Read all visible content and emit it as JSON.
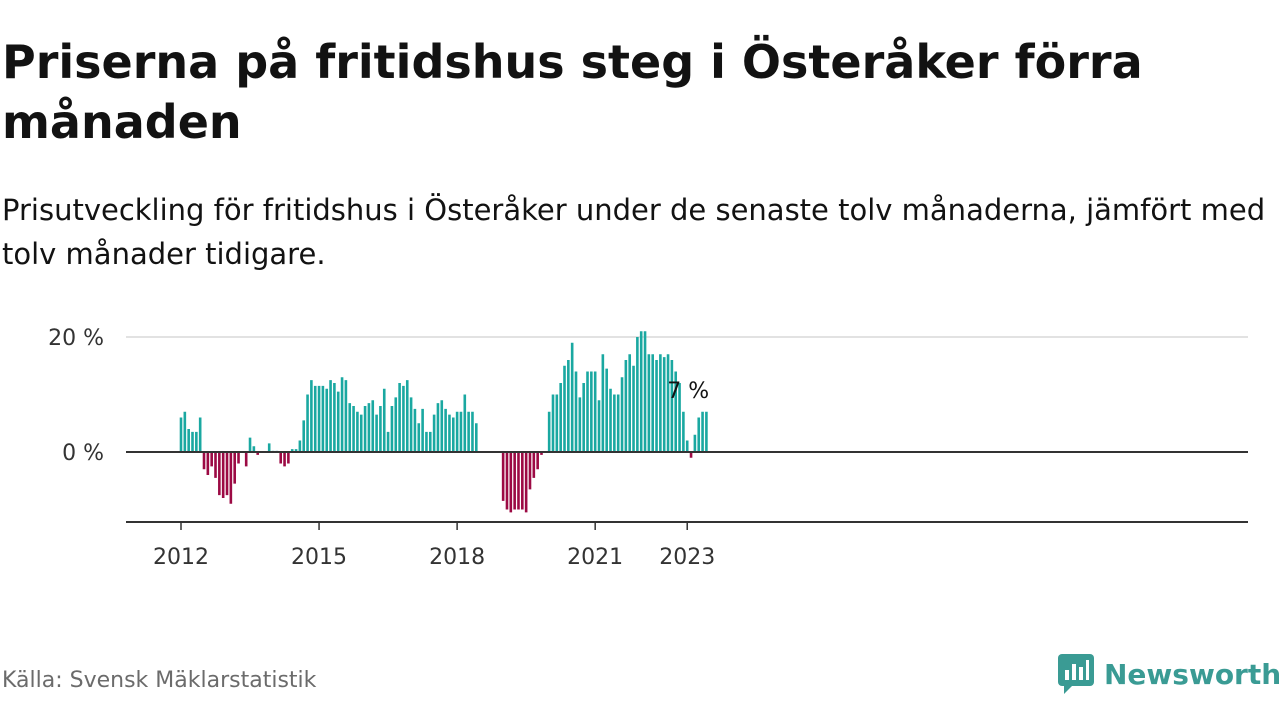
{
  "header": {
    "title": "Priserna på fritidshus steg i Österåker förra månaden",
    "subtitle": "Prisutveckling för fritidshus i Österåker under de senaste tolv månaderna, jämfört med tolv månader tidigare."
  },
  "footer": {
    "source": "Källa: Svensk Mäklarstatistik",
    "brand": "Newsworthy",
    "brand_icon": "newsworthy-logo-icon"
  },
  "colors": {
    "positive": "#1aa8a1",
    "negative": "#9c0a44",
    "brand": "#3a9b94",
    "axis": "#333333",
    "grid": "#d9d9d9"
  },
  "chart_data": {
    "type": "bar",
    "x_start": "2012-01",
    "x_end": "2023-01",
    "frequency": "monthly",
    "ylim": [
      -12,
      22
    ],
    "y_ticks": [
      {
        "value": 0,
        "label": "0 %"
      },
      {
        "value": 20,
        "label": "20 %"
      }
    ],
    "x_ticks": [
      {
        "date": "2012-01",
        "label": "2012"
      },
      {
        "date": "2015-01",
        "label": "2015"
      },
      {
        "date": "2018-01",
        "label": "2018"
      },
      {
        "date": "2021-01",
        "label": "2021"
      },
      {
        "date": "2023-01",
        "label": "2023"
      }
    ],
    "grid": true,
    "annotation": {
      "date": "2023-01",
      "label": "7 %"
    },
    "values": [
      6,
      7,
      4,
      3.5,
      3.5,
      6,
      -3,
      -4,
      -2.5,
      -4.5,
      -7.5,
      -8,
      -7.5,
      -9,
      -5.5,
      -2,
      0,
      -2.5,
      2.5,
      1,
      -0.5,
      0,
      0,
      1.5,
      0.2,
      0.2,
      -2,
      -2.5,
      -2,
      0.5,
      0.5,
      2,
      5.5,
      10,
      12.5,
      11.5,
      11.5,
      11.5,
      11,
      12.5,
      12,
      10.5,
      13,
      12.5,
      8.5,
      8,
      7,
      6.5,
      8,
      8.5,
      9,
      6.5,
      8,
      11,
      3.5,
      8,
      9.5,
      12,
      11.5,
      12.5,
      9.5,
      7.5,
      5,
      7.5,
      3.5,
      3.5,
      6.5,
      8.5,
      9,
      7.5,
      6.5,
      6,
      7,
      7,
      10,
      7,
      7,
      5,
      0,
      0,
      0,
      0,
      0,
      0,
      -8.5,
      -10,
      -10.5,
      -10,
      -10,
      -10,
      -10.5,
      -6.5,
      -4.5,
      -3,
      -0.5,
      0,
      7,
      10,
      10,
      12,
      15,
      16,
      19,
      14,
      9.5,
      12,
      14,
      14,
      14,
      9,
      17,
      14.5,
      11,
      10,
      10,
      13,
      16,
      17,
      15,
      20,
      21,
      21,
      17,
      17,
      16,
      17,
      16.5,
      17,
      16,
      14,
      12,
      7,
      2,
      -1,
      3,
      6,
      7,
      7
    ]
  }
}
